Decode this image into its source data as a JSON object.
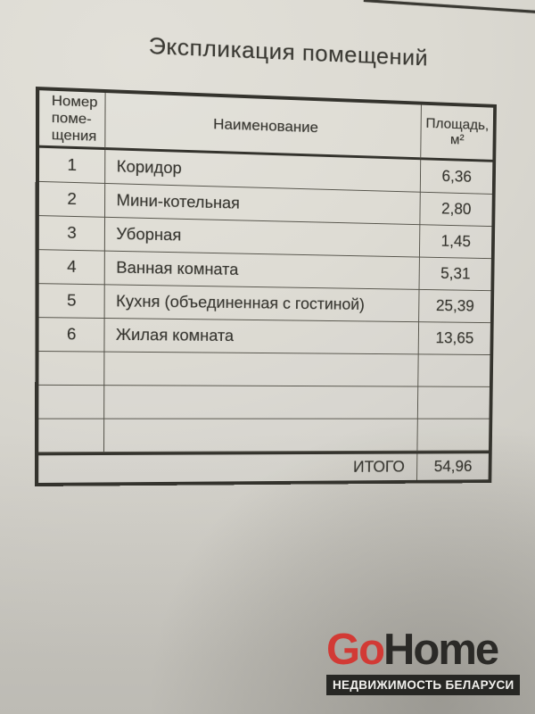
{
  "document": {
    "title": "Экспликация помещений",
    "table": {
      "header": {
        "number_lines": [
          "Номер",
          "поме-",
          "щения"
        ],
        "name": "Наименование",
        "area_line1": "Площадь,",
        "area_line2": "м²"
      },
      "rows": [
        {
          "num": "1",
          "name": "Коридор",
          "area": "6,36"
        },
        {
          "num": "2",
          "name": "Мини-котельная",
          "area": "2,80"
        },
        {
          "num": "3",
          "name": "Уборная",
          "area": "1,45"
        },
        {
          "num": "4",
          "name": "Ванная комната",
          "area": "5,31"
        },
        {
          "num": "5",
          "name": "Кухня (объединенная с гостиной)",
          "area": "25,39"
        },
        {
          "num": "6",
          "name": "Жилая комната",
          "area": "13,65"
        }
      ],
      "empty_row_count": 3,
      "total": {
        "label": "ИТОГО",
        "value": "54,96"
      }
    }
  },
  "watermark": {
    "brand_prefix": "Go",
    "brand_suffix": "Home",
    "tagline": "НЕДВИЖИМОСТЬ БЕЛАРУСИ",
    "colors": {
      "brand_red": "#d23a35",
      "brand_dark": "#2b2a27",
      "banner_background": "#272724",
      "banner_text": "#f2f1ee",
      "paper_light": "#e2e0d9",
      "paper_dark": "#b9b7b1",
      "ink": "#35342e"
    }
  }
}
